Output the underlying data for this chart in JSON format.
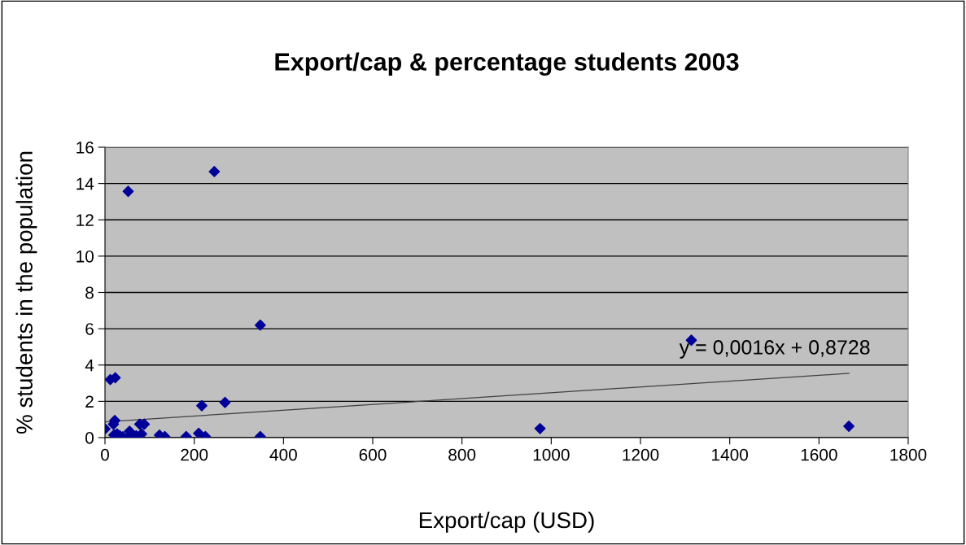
{
  "chart_data": {
    "type": "scatter",
    "title": "Export/cap & percentage students 2003",
    "xlabel": "Export/cap (USD)",
    "ylabel": "% students in the population",
    "xlim": [
      0,
      1800
    ],
    "xticks": [
      0,
      200,
      400,
      600,
      800,
      1000,
      1200,
      1400,
      1600,
      1800
    ],
    "ylim": [
      0,
      16
    ],
    "yticks": [
      0,
      2,
      4,
      6,
      8,
      10,
      12,
      14,
      16
    ],
    "grid": "y",
    "marker": "diamond",
    "legend": false,
    "annotations": [
      "y = 0,0016x + 0,8728"
    ],
    "series": [
      {
        "color": "#000099",
        "x": [
          12,
          23,
          22,
          19,
          78,
          88,
          217,
          269,
          348,
          348,
          122,
          134,
          182,
          210,
          225,
          52,
          245,
          1314,
          1667,
          975,
          0,
          20,
          27,
          33,
          55,
          55,
          70,
          82,
          40
        ],
        "values": [
          3.2,
          3.3,
          0.94,
          0.74,
          0.74,
          0.74,
          1.76,
          1.94,
          6.2,
          0.06,
          0.14,
          0.06,
          0.06,
          0.24,
          0.06,
          13.57,
          14.66,
          5.37,
          0.63,
          0.5,
          0.48,
          0.15,
          0.2,
          0.1,
          0.35,
          0.06,
          0.1,
          0.2,
          0.05
        ]
      },
      {
        "type": "line",
        "marker": "none",
        "color": "#404040",
        "x": [
          0,
          1667
        ],
        "values": [
          0.87,
          3.54
        ]
      }
    ]
  }
}
